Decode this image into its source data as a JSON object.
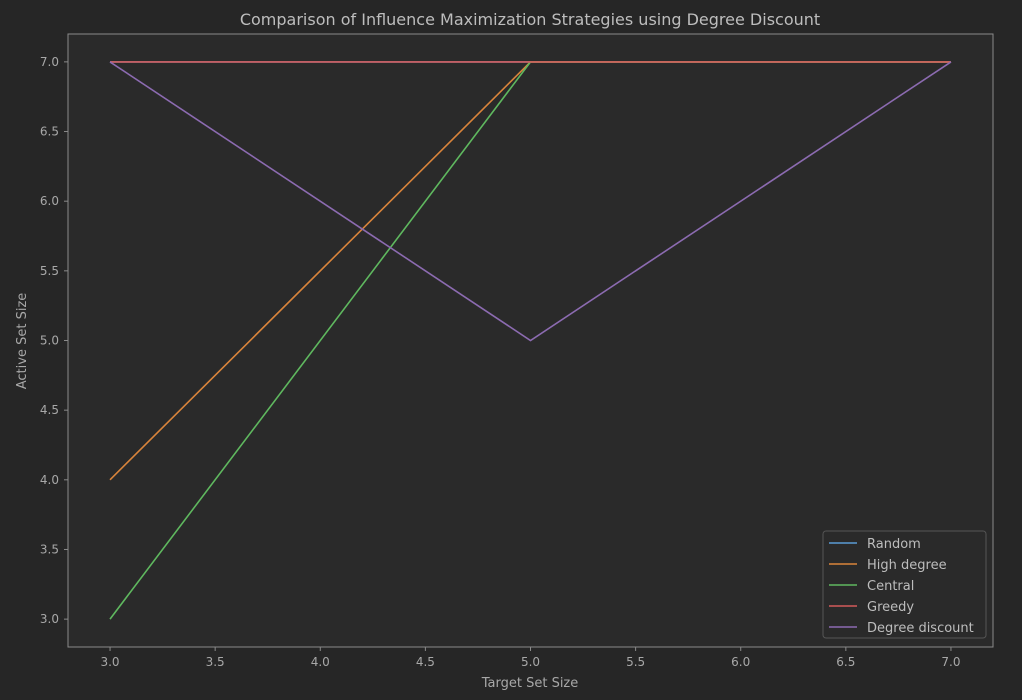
{
  "chart_data": {
    "type": "line",
    "title": "Comparison of Influence Maximization Strategies using Degree Discount",
    "xlabel": "Target Set Size",
    "ylabel": "Active Set Size",
    "x": [
      3,
      5,
      7
    ],
    "xlim": [
      2.8,
      7.2
    ],
    "ylim": [
      2.8,
      7.2
    ],
    "xticks": [
      "3.0",
      "3.5",
      "4.0",
      "4.5",
      "5.0",
      "5.5",
      "6.0",
      "6.5",
      "7.0"
    ],
    "yticks": [
      "3.0",
      "3.5",
      "4.0",
      "4.5",
      "5.0",
      "5.5",
      "6.0",
      "6.5",
      "7.0"
    ],
    "grid": false,
    "legend_position": "bottom-right",
    "series": [
      {
        "name": "Random",
        "color": "#5b9bd5",
        "values": [
          7,
          7,
          7
        ]
      },
      {
        "name": "High degree",
        "color": "#d9843b",
        "values": [
          4,
          7,
          7
        ]
      },
      {
        "name": "Central",
        "color": "#5fb85f",
        "values": [
          3,
          7,
          7
        ]
      },
      {
        "name": "Greedy",
        "color": "#d35b5b",
        "values": [
          7,
          7,
          7
        ]
      },
      {
        "name": "Degree discount",
        "color": "#8c6bb1",
        "values": [
          7,
          5,
          7
        ]
      }
    ]
  }
}
